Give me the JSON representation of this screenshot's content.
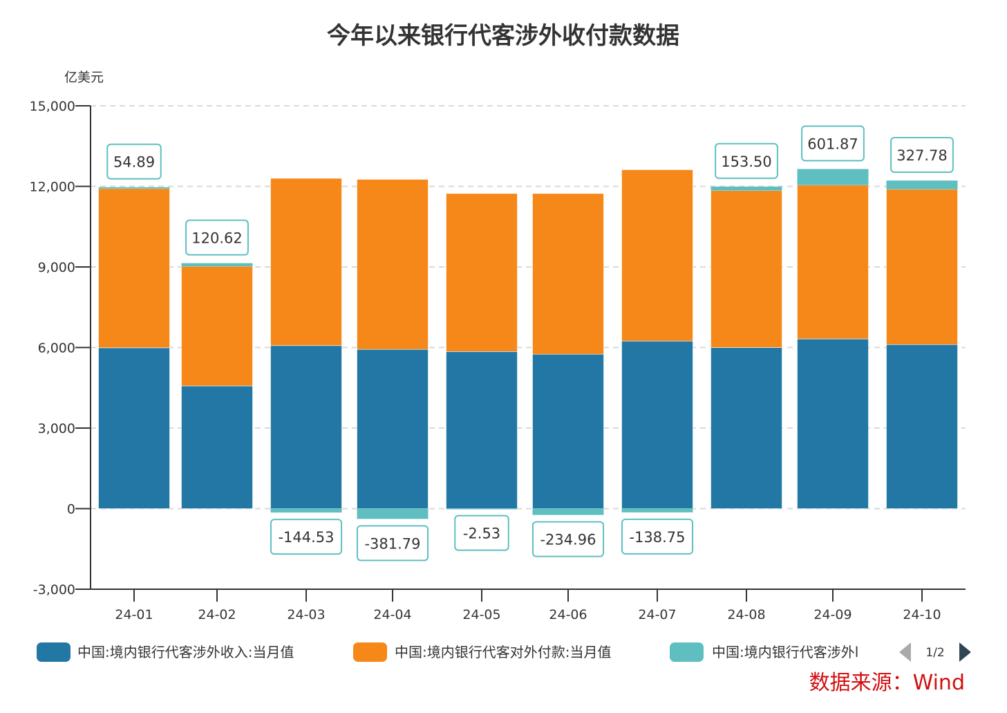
{
  "chart_data": {
    "type": "bar",
    "stacked": true,
    "title": "今年以来银行代客涉外收付款数据",
    "ylabel": "亿美元",
    "xlabel": "",
    "ylim": [
      -3000,
      15000
    ],
    "yticks": [
      -3000,
      0,
      3000,
      6000,
      9000,
      12000,
      15000
    ],
    "ytick_labels": [
      "-3,000",
      "0",
      "3,000",
      "6,000",
      "9,000",
      "12,000",
      "15,000"
    ],
    "grid": true,
    "categories": [
      "24-01",
      "24-02",
      "24-03",
      "24-04",
      "24-05",
      "24-06",
      "24-07",
      "24-08",
      "24-09",
      "24-10"
    ],
    "series": [
      {
        "name": "中国:境内银行代客涉外收入:当月值",
        "color": "#2277a4",
        "values": [
          5990,
          4570,
          6070,
          5930,
          5850,
          5750,
          6240,
          6000,
          6320,
          6110
        ]
      },
      {
        "name": "中国:境内银行代客对外付款:当月值",
        "color": "#f68819",
        "values": [
          5925,
          4450,
          6230,
          6330,
          5885,
          5985,
          6380,
          5840,
          5725,
          5780
        ]
      },
      {
        "name": "中国:境内银行代客涉外收付款差额:当月值",
        "legend_display": "中国:境内银行代客涉外l",
        "color": "#5fbfc0",
        "values": [
          54.89,
          120.62,
          -144.53,
          -381.79,
          -2.53,
          -234.96,
          -138.75,
          153.5,
          601.87,
          327.78
        ],
        "labels": [
          "54.89",
          "120.62",
          "-144.53",
          "-381.79",
          "-2.53",
          "-234.96",
          "-138.75",
          "153.50",
          "601.87",
          "327.78"
        ]
      }
    ],
    "legend": {
      "placement": "bottom",
      "page": "1/2"
    },
    "source": "数据来源：Wind"
  }
}
